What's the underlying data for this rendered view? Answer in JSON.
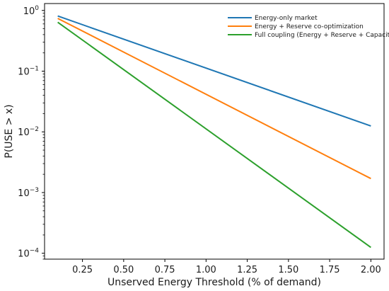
{
  "chart_data": {
    "type": "line",
    "title": "",
    "xlabel": "Unserved Energy Threshold (% of demand)",
    "ylabel": "P(USE > x)",
    "xscale": "linear",
    "yscale": "log",
    "xlim": [
      0.02,
      2.08
    ],
    "ylim": [
      8e-05,
      1.3
    ],
    "grid": false,
    "legend_position": "top-right",
    "x_ticks": [
      {
        "value": 0.25,
        "label": "0.25"
      },
      {
        "value": 0.5,
        "label": "0.50"
      },
      {
        "value": 0.75,
        "label": "0.75"
      },
      {
        "value": 1.0,
        "label": "1.00"
      },
      {
        "value": 1.25,
        "label": "1.25"
      },
      {
        "value": 1.5,
        "label": "1.50"
      },
      {
        "value": 1.75,
        "label": "1.75"
      },
      {
        "value": 2.0,
        "label": "2.00"
      }
    ],
    "y_ticks": [
      {
        "value": 1,
        "base": "10",
        "exp": "0"
      },
      {
        "value": 0.1,
        "base": "10",
        "exp": "−1"
      },
      {
        "value": 0.01,
        "base": "10",
        "exp": "−2"
      },
      {
        "value": 0.001,
        "base": "10",
        "exp": "−3"
      },
      {
        "value": 0.0001,
        "base": "10",
        "exp": "−4"
      }
    ],
    "series": [
      {
        "name": "Energy-only market",
        "color": "#1f77b4",
        "x": [
          0.1,
          2.0
        ],
        "y": [
          0.81,
          0.0125
        ]
      },
      {
        "name": "Energy + Reserve co-optimization",
        "color": "#ff7f0e",
        "x": [
          0.1,
          2.0
        ],
        "y": [
          0.74,
          0.0017
        ]
      },
      {
        "name": "Full coupling (Energy + Reserve + Capacity)",
        "color": "#2ca02c",
        "x": [
          0.1,
          2.0
        ],
        "y": [
          0.64,
          0.000125
        ]
      }
    ]
  }
}
